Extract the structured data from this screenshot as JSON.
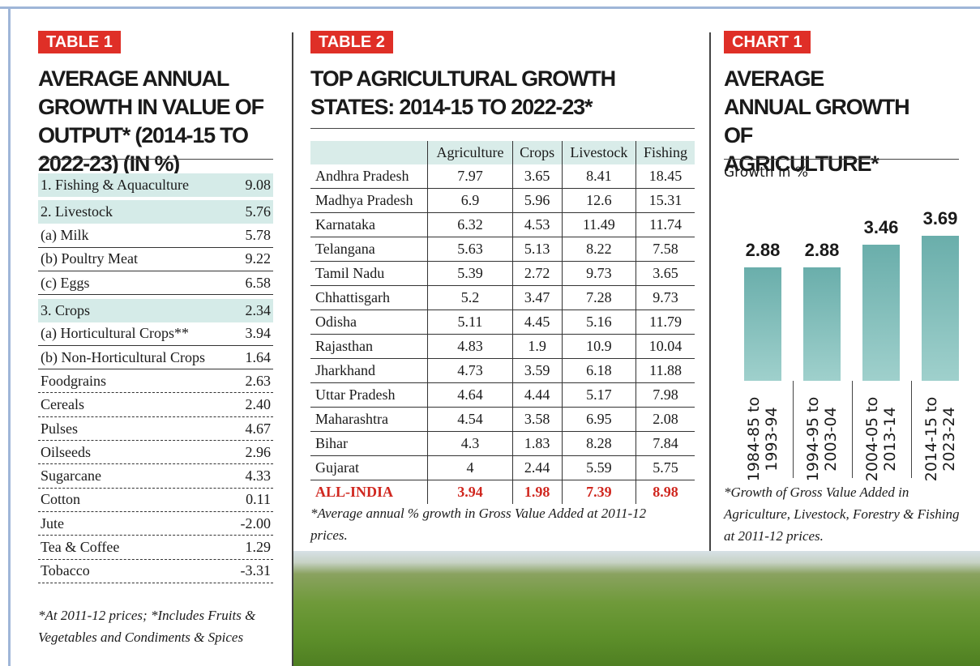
{
  "table1": {
    "tag": "TABLE 1",
    "title": "AVERAGE ANNUAL GROWTH IN VALUE OF OUTPUT* (2014-15 TO 2022-23) (IN %)",
    "rows": [
      [
        "1. Fishing & Aquaculture",
        "9.08"
      ],
      [
        "2. Livestock",
        "5.76"
      ],
      [
        "(a) Milk",
        "5.78"
      ],
      [
        "(b) Poultry Meat",
        "9.22"
      ],
      [
        "(c) Eggs",
        "6.58"
      ],
      [
        "3. Crops",
        "2.34"
      ],
      [
        "(a) Horticultural Crops**",
        "3.94"
      ],
      [
        "(b) Non-Horticultural Crops",
        "1.64"
      ],
      [
        "Foodgrains",
        "2.63"
      ],
      [
        "Cereals",
        "2.40"
      ],
      [
        "Pulses",
        "4.67"
      ],
      [
        "Oilseeds",
        "2.96"
      ],
      [
        "Sugarcane",
        "4.33"
      ],
      [
        "Cotton",
        "0.11"
      ],
      [
        "Jute",
        "-2.00"
      ],
      [
        "Tea & Coffee",
        "1.29"
      ],
      [
        "Tobacco",
        "-3.31"
      ]
    ],
    "footnote": "*At 2011-12 prices; *Includes Fruits & Vegetables and Condiments & Spices"
  },
  "table2": {
    "tag": "TABLE 2",
    "title": "TOP AGRICULTURAL GROWTH STATES: 2014-15 TO 2022-23*",
    "columns": [
      "Agriculture",
      "Crops",
      "Livestock",
      "Fishing"
    ],
    "rows": [
      [
        "Andhra Pradesh",
        "7.97",
        "3.65",
        "8.41",
        "18.45"
      ],
      [
        "Madhya Pradesh",
        "6.9",
        "5.96",
        "12.6",
        "15.31"
      ],
      [
        "Karnataka",
        "6.32",
        "4.53",
        "11.49",
        "11.74"
      ],
      [
        "Telangana",
        "5.63",
        "5.13",
        "8.22",
        "7.58"
      ],
      [
        "Tamil Nadu",
        "5.39",
        "2.72",
        "9.73",
        "3.65"
      ],
      [
        "Chhattisgarh",
        "5.2",
        "3.47",
        "7.28",
        "9.73"
      ],
      [
        "Odisha",
        "5.11",
        "4.45",
        "5.16",
        "11.79"
      ],
      [
        "Rajasthan",
        "4.83",
        "1.9",
        "10.9",
        "10.04"
      ],
      [
        "Jharkhand",
        "4.73",
        "3.59",
        "6.18",
        "11.88"
      ],
      [
        "Uttar Pradesh",
        "4.64",
        "4.44",
        "5.17",
        "7.98"
      ],
      [
        "Maharashtra",
        "4.54",
        "3.58",
        "6.95",
        "2.08"
      ],
      [
        "Bihar",
        "4.3",
        "1.83",
        "8.28",
        "7.84"
      ],
      [
        "Gujarat",
        "4",
        "2.44",
        "5.59",
        "5.75"
      ]
    ],
    "total": [
      "ALL-INDIA",
      "3.94",
      "1.98",
      "7.39",
      "8.98"
    ],
    "footnote": "*Average annual % growth in Gross Value Added at 2011-12 prices."
  },
  "chart_data": {
    "type": "bar",
    "tag": "CHART 1",
    "title": "AVERAGE ANNUAL GROWTH OF AGRICULTURE*",
    "subtitle": "Growth in %",
    "categories": [
      "1984-85 to 1993-94",
      "1994-95 to 2003-04",
      "2004-05 to 2013-14",
      "2014-15 to 2023-24"
    ],
    "values": [
      2.88,
      2.88,
      3.46,
      3.69
    ],
    "color": "#6aaeab",
    "footnote": "*Growth of Gross Value Added in Agriculture, Livestock, Forestry & Fishing at 2011-12 prices."
  }
}
